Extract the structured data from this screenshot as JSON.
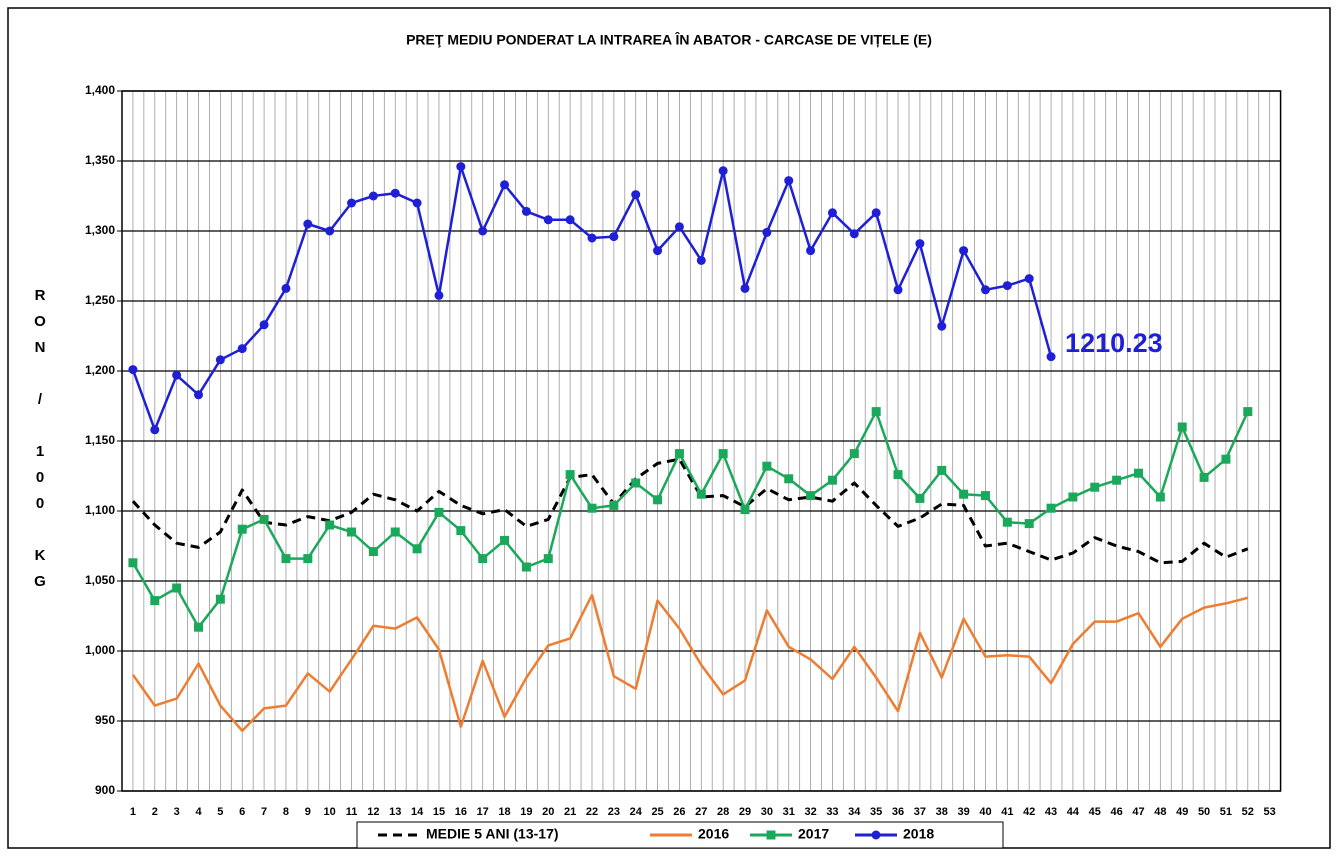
{
  "chart_data": {
    "type": "line",
    "title": "PREŢ MEDIU PONDERAT LA INTRAREA ÎN ABATOR - CARCASE DE VIȚELE (E)",
    "y_label": "RON / 100 KG",
    "categories": [
      1,
      2,
      3,
      4,
      5,
      6,
      7,
      8,
      9,
      10,
      11,
      12,
      13,
      14,
      15,
      16,
      17,
      18,
      19,
      20,
      21,
      22,
      23,
      24,
      25,
      26,
      27,
      28,
      29,
      30,
      31,
      32,
      33,
      34,
      35,
      36,
      37,
      38,
      39,
      40,
      41,
      42,
      43,
      44,
      45,
      46,
      47,
      48,
      49,
      50,
      51,
      52,
      53
    ],
    "ylim": [
      900,
      1400
    ],
    "yticks": [
      {
        "value": 900,
        "label": "900"
      },
      {
        "value": 950,
        "label": "950"
      },
      {
        "value": 1000,
        "label": "1,000"
      },
      {
        "value": 1050,
        "label": "1,050"
      },
      {
        "value": 1100,
        "label": "1,100"
      },
      {
        "value": 1150,
        "label": "1,150"
      },
      {
        "value": 1200,
        "label": "1,200"
      },
      {
        "value": 1250,
        "label": "1,250"
      },
      {
        "value": 1300,
        "label": "1,300"
      },
      {
        "value": 1350,
        "label": "1,350"
      },
      {
        "value": 1400,
        "label": "1,400"
      }
    ],
    "grid": true,
    "legend": "bottom",
    "series": [
      {
        "name": "MEDIE 5 ANI (13-17)",
        "color": "#000000",
        "dash": true,
        "marker": null,
        "values": [
          1107,
          1090,
          1077,
          1074,
          1085,
          1115,
          1092,
          1090,
          1096,
          1093,
          1099,
          1112,
          1108,
          1100,
          1114,
          1104,
          1098,
          1101,
          1089,
          1094,
          1124,
          1126,
          1105,
          1123,
          1134,
          1137,
          1110,
          1111,
          1103,
          1116,
          1108,
          1110,
          1107,
          1120,
          1104,
          1089,
          1095,
          1105,
          1104,
          1075,
          1077,
          1071,
          1065,
          1070,
          1081,
          1075,
          1071,
          1063,
          1064,
          1077,
          1067,
          1073,
          null
        ]
      },
      {
        "name": "2016",
        "color": "#ed7d31",
        "dash": false,
        "marker": null,
        "values": [
          983,
          961,
          966,
          991,
          961,
          943,
          959,
          961,
          984,
          971,
          994,
          1018,
          1016,
          1024,
          1001,
          946,
          993,
          953,
          981,
          1004,
          1009,
          1040,
          982,
          973,
          1036,
          1016,
          990,
          969,
          979,
          1029,
          1003,
          994,
          980,
          1003,
          981,
          957,
          1013,
          981,
          1023,
          996,
          997,
          996,
          977,
          1005,
          1021,
          1021,
          1027,
          1003,
          1023,
          1031,
          1034,
          1038,
          null
        ]
      },
      {
        "name": "2017",
        "color": "#1aa85a",
        "dash": false,
        "marker": "square",
        "values": [
          1063,
          1036,
          1045,
          1017,
          1037,
          1087,
          1094,
          1066,
          1066,
          1090,
          1085,
          1071,
          1085,
          1073,
          1099,
          1086,
          1066,
          1079,
          1060,
          1066,
          1126,
          1102,
          1104,
          1120,
          1108,
          1141,
          1112,
          1141,
          1101,
          1132,
          1123,
          1111,
          1122,
          1141,
          1171,
          1126,
          1109,
          1129,
          1112,
          1111,
          1092,
          1091,
          1102,
          1110,
          1117,
          1122,
          1127,
          1110,
          1160,
          1124,
          1137,
          1171,
          null
        ]
      },
      {
        "name": "2018",
        "color": "#1f1fd6",
        "dash": false,
        "marker": "circle",
        "values": [
          1201,
          1158,
          1197,
          1183,
          1208,
          1216,
          1233,
          1259,
          1305,
          1300,
          1320,
          1325,
          1327,
          1320,
          1254,
          1346,
          1300,
          1333,
          1314,
          1308,
          1308,
          1295,
          1296,
          1326,
          1286,
          1303,
          1279,
          1343,
          1259,
          1299,
          1336,
          1286,
          1313,
          1298,
          1313,
          1258,
          1291,
          1232,
          1286,
          1258,
          1261,
          1266,
          1210.23,
          null,
          null,
          null,
          null,
          null,
          null,
          null,
          null,
          null,
          null
        ],
        "value_labels": [
          null,
          null,
          null,
          null,
          null,
          null,
          null,
          null,
          null,
          null,
          null,
          null,
          null,
          null,
          null,
          null,
          null,
          null,
          null,
          null,
          null,
          null,
          null,
          null,
          null,
          null,
          null,
          null,
          null,
          null,
          null,
          null,
          null,
          null,
          null,
          null,
          null,
          null,
          null,
          null,
          null,
          null,
          "1210.23",
          null,
          null,
          null,
          null,
          null,
          null,
          null,
          null,
          null,
          null
        ]
      }
    ]
  }
}
